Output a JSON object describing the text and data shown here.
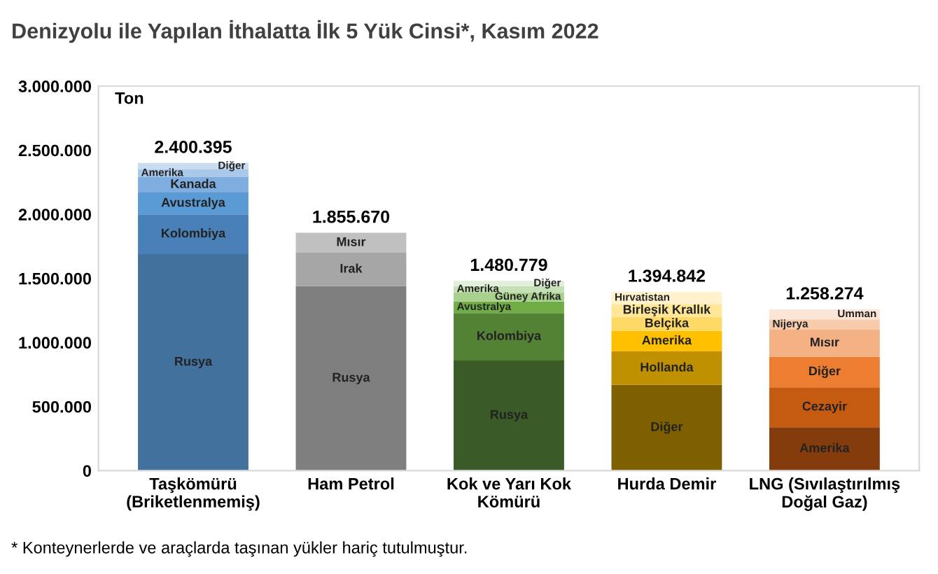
{
  "chart_data": {
    "type": "bar",
    "stacked": true,
    "title": "Denizyolu ile Yapılan İthalatta İlk 5 Yük Cinsi*, Kasım 2022",
    "ylabel": "Ton",
    "categories": [
      "Taşkömürü\n(Briketlenmemiş)",
      "Ham Petrol",
      "Kok ve Yarı Kok\nKömürü",
      "Hurda Demir",
      "LNG (Sıvılaştırılmış\nDoğal Gaz)"
    ],
    "series": [
      {
        "colors": [
          "#41719c",
          "#7f7f7f",
          "#3a5a28",
          "#7f6000",
          "#843c0c"
        ],
        "values": [
          1690000,
          1440000,
          860000,
          670000,
          340000
        ],
        "value_labels": [
          "Rusya",
          "Rusya",
          "Rusya",
          "Diğer",
          "Amerika"
        ]
      },
      {
        "colors": [
          "#4a80b8",
          "#a6a6a6",
          "#548235",
          "#bf9000",
          "#c55a11"
        ],
        "values": [
          310000,
          260000,
          370000,
          260000,
          310000
        ],
        "value_labels": [
          "Kolombiya",
          "Irak",
          "Kolombiya",
          "Hollanda",
          "Cezayir"
        ]
      },
      {
        "colors": [
          "#5b9bd5",
          "#c0c0c0",
          "#70ad47",
          "#ffc000",
          "#ed7d31"
        ],
        "values": [
          170000,
          155670,
          90000,
          160000,
          240000
        ],
        "value_labels": [
          "Avustralya",
          "Mısır",
          "Avustralya",
          "Amerika",
          "Diğer"
        ]
      },
      {
        "colors": [
          "#7eaee0",
          null,
          "#a9d18e",
          "#ffd966",
          "#f4b183"
        ],
        "values": [
          120000,
          null,
          70000,
          110000,
          210000
        ],
        "value_labels": [
          "Kanada",
          null,
          "Güney Afrika",
          "Belçika",
          "Mısır"
        ]
      },
      {
        "colors": [
          "#a9c8ea",
          null,
          "#c5e0b4",
          "#ffe699",
          "#f8cbad"
        ],
        "values": [
          60000,
          null,
          50000,
          100000,
          80000
        ],
        "value_labels": [
          "Amerika",
          null,
          "Amerika",
          "Birleşik Krallık",
          "Nijerya"
        ]
      },
      {
        "colors": [
          "#c9dcf0",
          null,
          "#e2f0d9",
          "#fff2cc",
          "#fbe5d6"
        ],
        "values": [
          50395,
          null,
          40779,
          94842,
          78274
        ],
        "value_labels": [
          "Diğer",
          null,
          "Diğer",
          "Hırvatistan",
          "Umman"
        ]
      }
    ],
    "totals": [
      "2.400.395",
      "1.855.670",
      "1.480.779",
      "1.394.842",
      "1.258.274"
    ],
    "ylim": [
      0,
      3000000
    ],
    "yticks": [
      {
        "value": 0,
        "label": "0"
      },
      {
        "value": 500000,
        "label": "500.000"
      },
      {
        "value": 1000000,
        "label": "1.000.000"
      },
      {
        "value": 1500000,
        "label": "1.500.000"
      },
      {
        "value": 2000000,
        "label": "2.000.000"
      },
      {
        "value": 2500000,
        "label": "2.500.000"
      },
      {
        "value": 3000000,
        "label": "3.000.000"
      }
    ],
    "grid": false,
    "legend": false,
    "annotations": [
      "* Konteynerlerde ve araçlarda taşınan yükler hariç tutulmuştur."
    ]
  }
}
